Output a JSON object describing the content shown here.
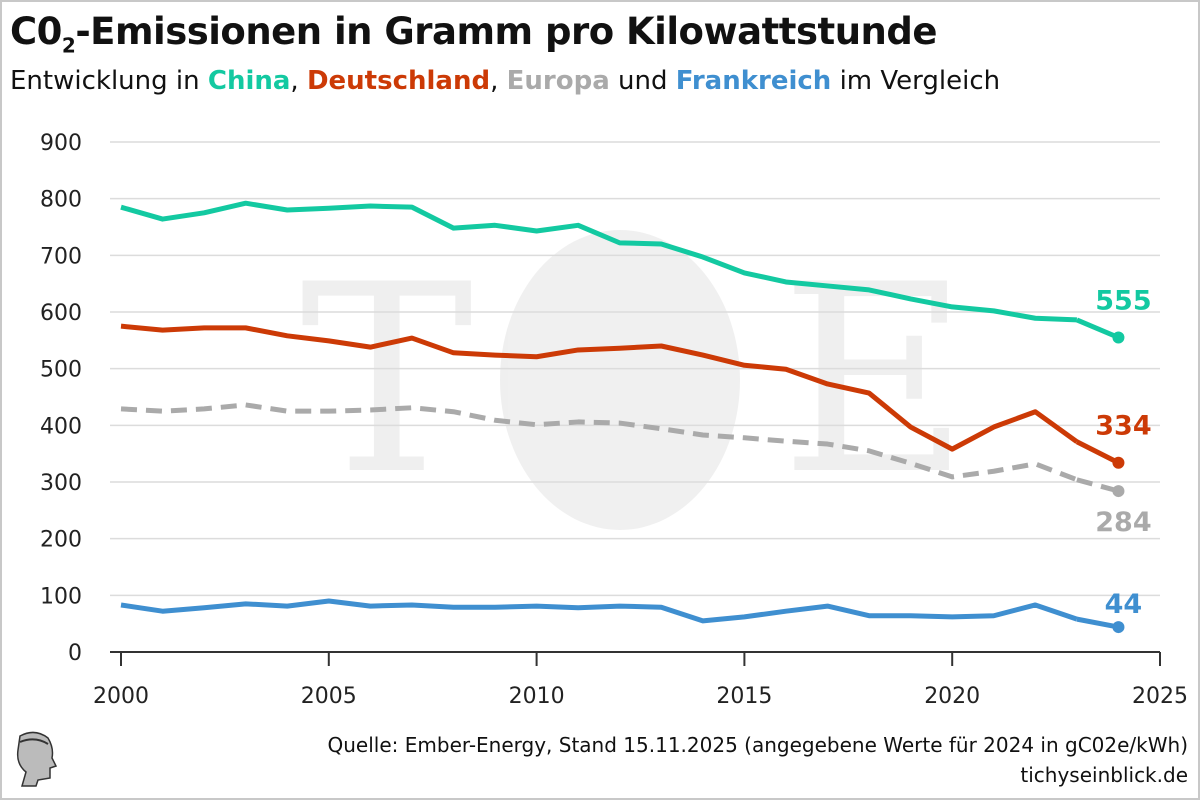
{
  "header": {
    "title_pre": "C0",
    "title_sub": "2",
    "title_post": "-Emissionen in Gramm pro Kilowattstunde",
    "subtitle_parts": [
      "Entwicklung in ",
      "China",
      ", ",
      "Deutschland",
      ", ",
      "Europa",
      " und ",
      "Frankreich",
      " im Vergleich"
    ]
  },
  "footer": {
    "source": "Quelle: Ember-Energy, Stand 15.11.2025 (angegebene Werte für 2024 in gC02e/kWh)",
    "site": "tichyseinblick.de"
  },
  "logo_text": "TE",
  "colors": {
    "china": "#13c9a1",
    "deutschland": "#cc3a06",
    "europa": "#aaaaaa",
    "frankreich": "#3f8fd0"
  },
  "chart_data": {
    "type": "line",
    "title": "C02-Emissionen in Gramm pro Kilowattstunde",
    "xlabel": "",
    "ylabel": "",
    "xlim": [
      2000,
      2025
    ],
    "ylim": [
      0,
      900
    ],
    "xticks": [
      "2000",
      "2005",
      "2010",
      "2015",
      "2020",
      "2025"
    ],
    "yticks": [
      "0",
      "100",
      "200",
      "300",
      "400",
      "500",
      "600",
      "700",
      "800",
      "900"
    ],
    "grid": true,
    "x": [
      2000,
      2001,
      2002,
      2003,
      2004,
      2005,
      2006,
      2007,
      2008,
      2009,
      2010,
      2011,
      2012,
      2013,
      2014,
      2015,
      2016,
      2017,
      2018,
      2019,
      2020,
      2021,
      2022,
      2023,
      2024
    ],
    "series": [
      {
        "name": "China",
        "color": "#13c9a1",
        "dash": false,
        "end_label": "555",
        "values": [
          785,
          764,
          775,
          792,
          780,
          783,
          787,
          785,
          748,
          753,
          743,
          753,
          722,
          720,
          697,
          669,
          653,
          646,
          639,
          623,
          609,
          602,
          589,
          586,
          555
        ]
      },
      {
        "name": "Deutschland",
        "color": "#cc3a06",
        "dash": false,
        "end_label": "334",
        "values": [
          575,
          568,
          572,
          572,
          558,
          549,
          538,
          554,
          528,
          524,
          521,
          533,
          536,
          540,
          524,
          506,
          499,
          473,
          457,
          397,
          358,
          397,
          424,
          371,
          334
        ]
      },
      {
        "name": "Europa",
        "color": "#aaaaaa",
        "dash": true,
        "end_label": "284",
        "values": [
          429,
          425,
          429,
          436,
          425,
          425,
          427,
          431,
          424,
          409,
          401,
          406,
          404,
          394,
          383,
          378,
          372,
          367,
          355,
          333,
          309,
          319,
          332,
          304,
          284
        ]
      },
      {
        "name": "Frankreich",
        "color": "#3f8fd0",
        "dash": false,
        "end_label": "44",
        "values": [
          83,
          72,
          78,
          85,
          81,
          90,
          81,
          83,
          79,
          79,
          81,
          78,
          81,
          79,
          55,
          62,
          72,
          81,
          64,
          64,
          62,
          64,
          83,
          58,
          44
        ]
      }
    ]
  }
}
